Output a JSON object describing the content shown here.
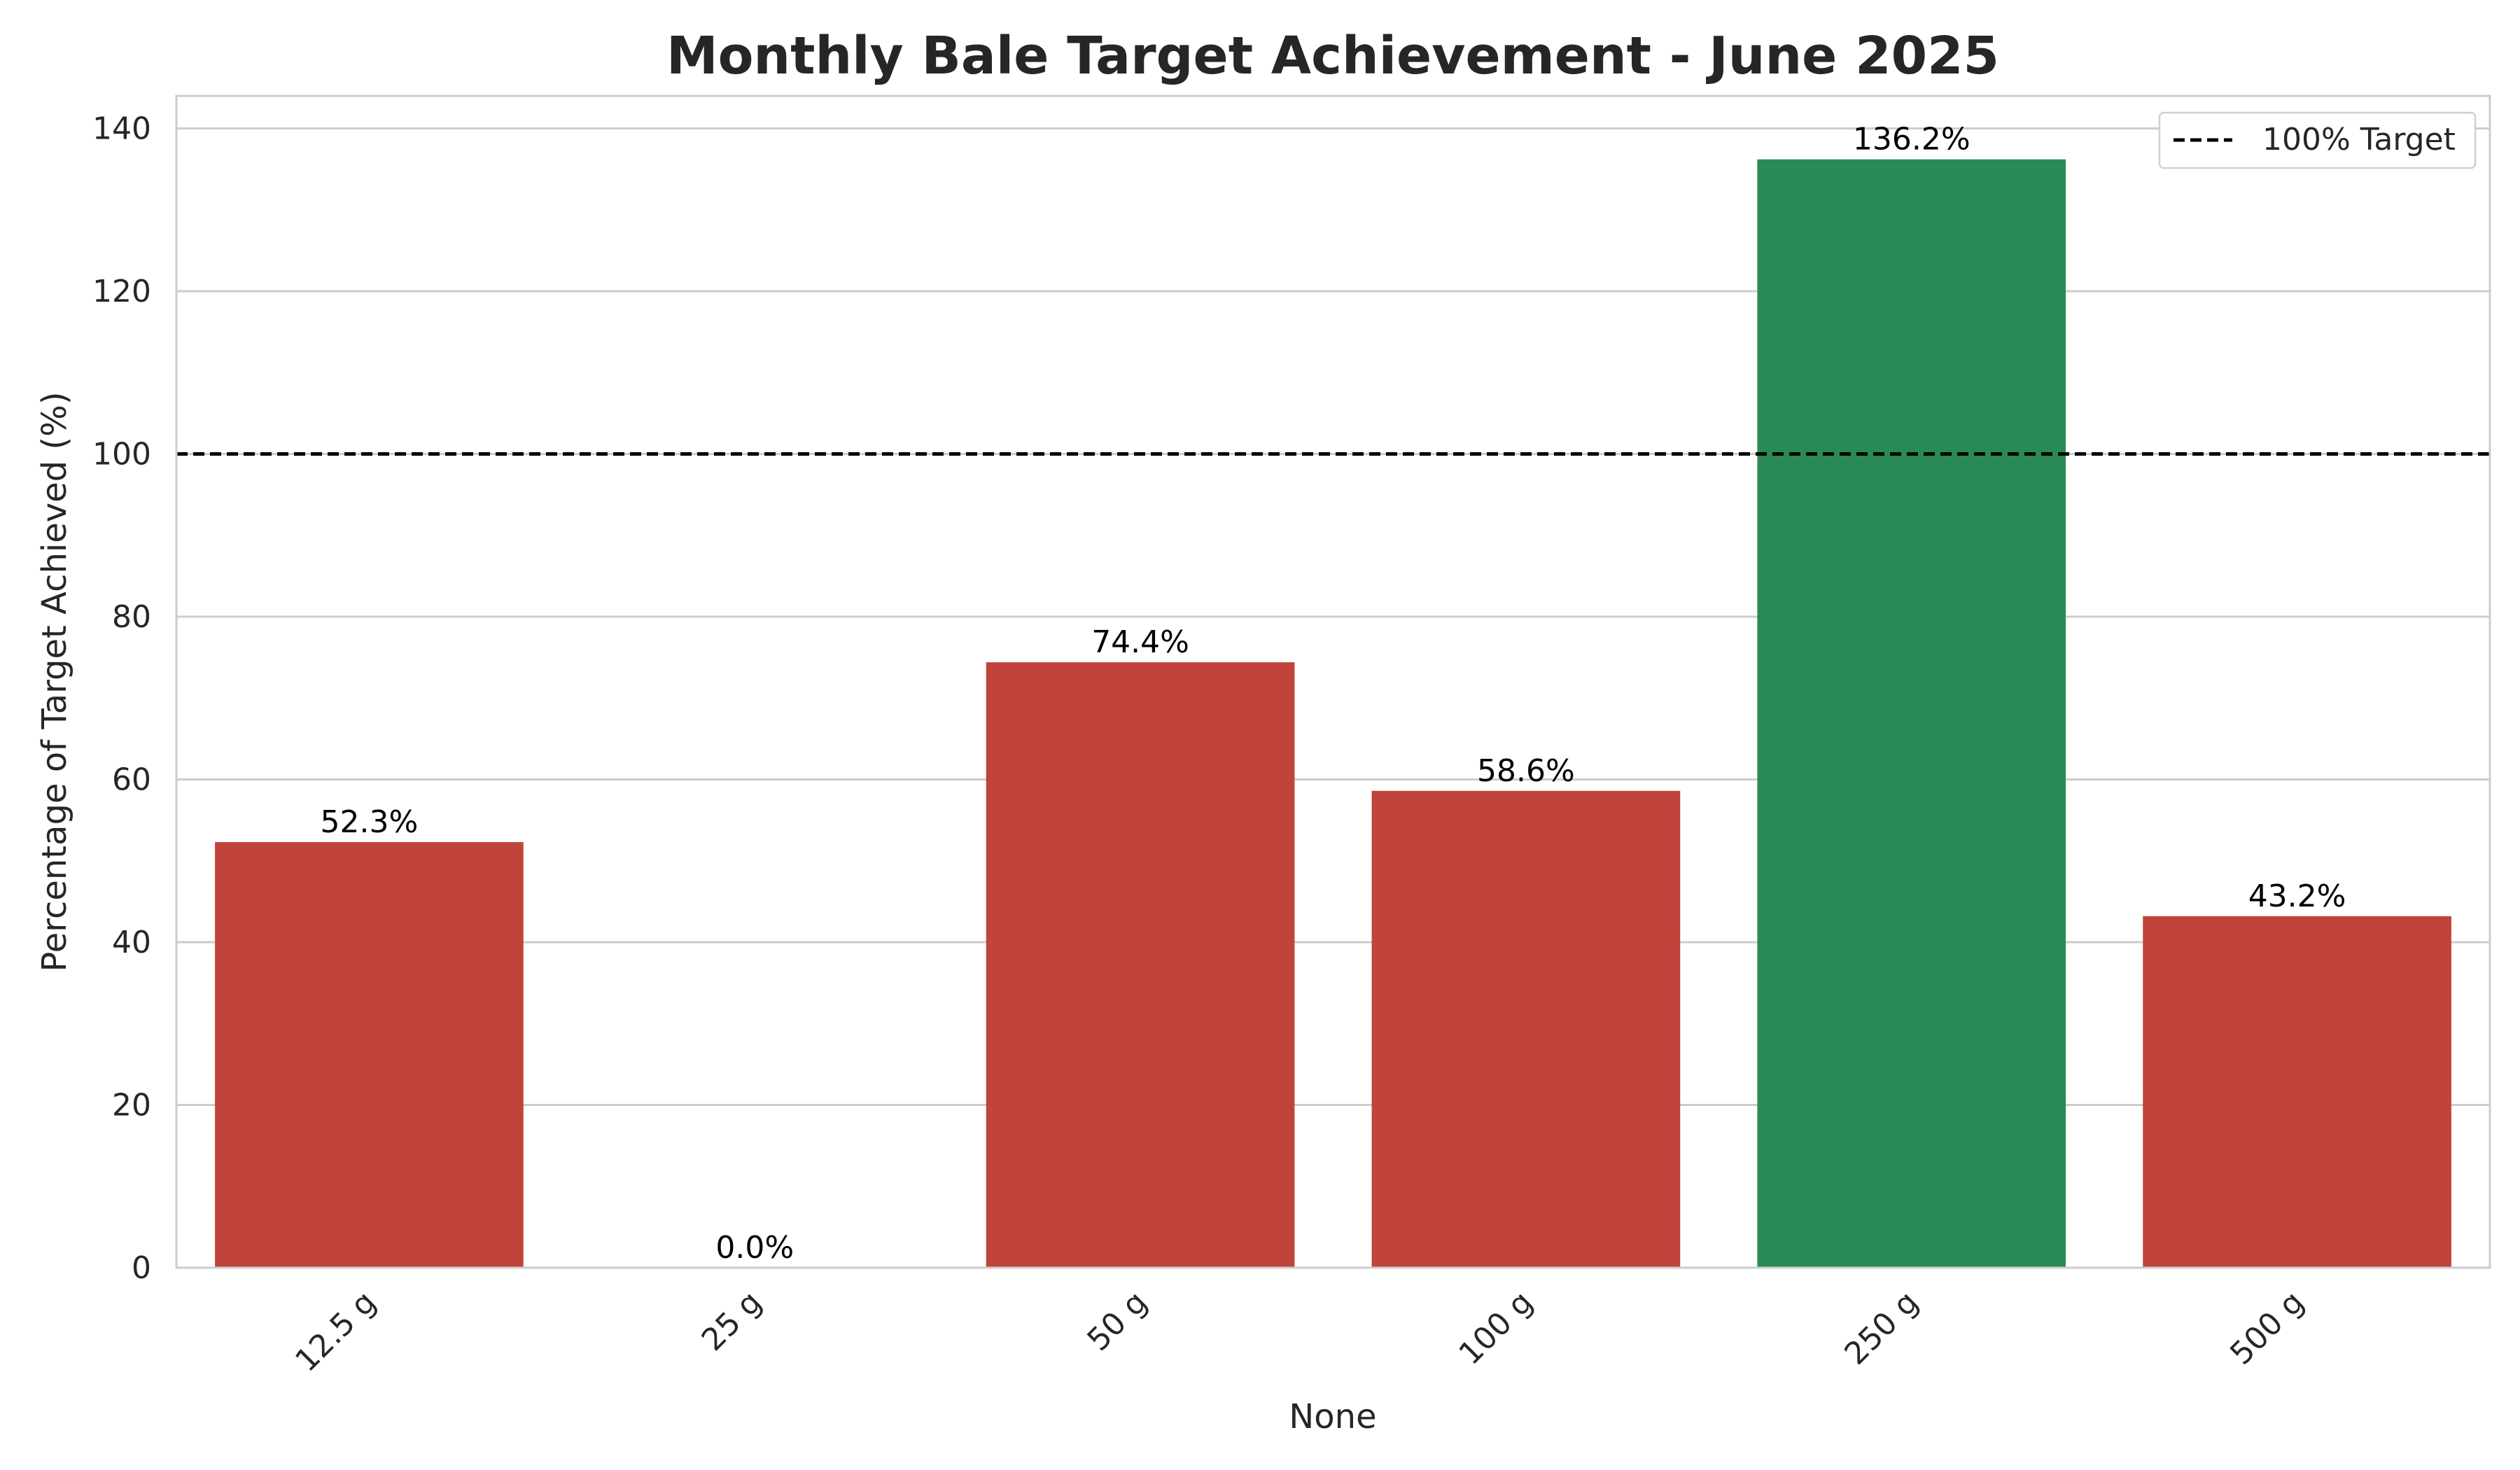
{
  "chart_data": {
    "type": "bar",
    "title": "Monthly Bale Target Achievement - June 2025",
    "xlabel": "None",
    "ylabel": "Percentage of Target Achieved (%)",
    "categories": [
      "12.5 g",
      "25 g",
      "50 g",
      "100 g",
      "250 g",
      "500 g"
    ],
    "values": [
      52.3,
      0.0,
      74.4,
      58.6,
      136.2,
      43.2
    ],
    "value_labels": [
      "52.3%",
      "0.0%",
      "74.4%",
      "58.6%",
      "136.2%",
      "43.2%"
    ],
    "bar_colors": [
      "#c0443c",
      "#c0443c",
      "#c0443c",
      "#c0443c",
      "#2a8a55",
      "#c0443c"
    ],
    "ylim": [
      0,
      144
    ],
    "yticks": [
      0,
      20,
      40,
      60,
      80,
      100,
      120,
      140
    ],
    "grid": true,
    "reference_line": {
      "value": 100,
      "label": "100% Target",
      "style": "dashed",
      "color": "#000000"
    },
    "legend": {
      "placement": "top-right",
      "entries": [
        "100% Target"
      ]
    }
  }
}
